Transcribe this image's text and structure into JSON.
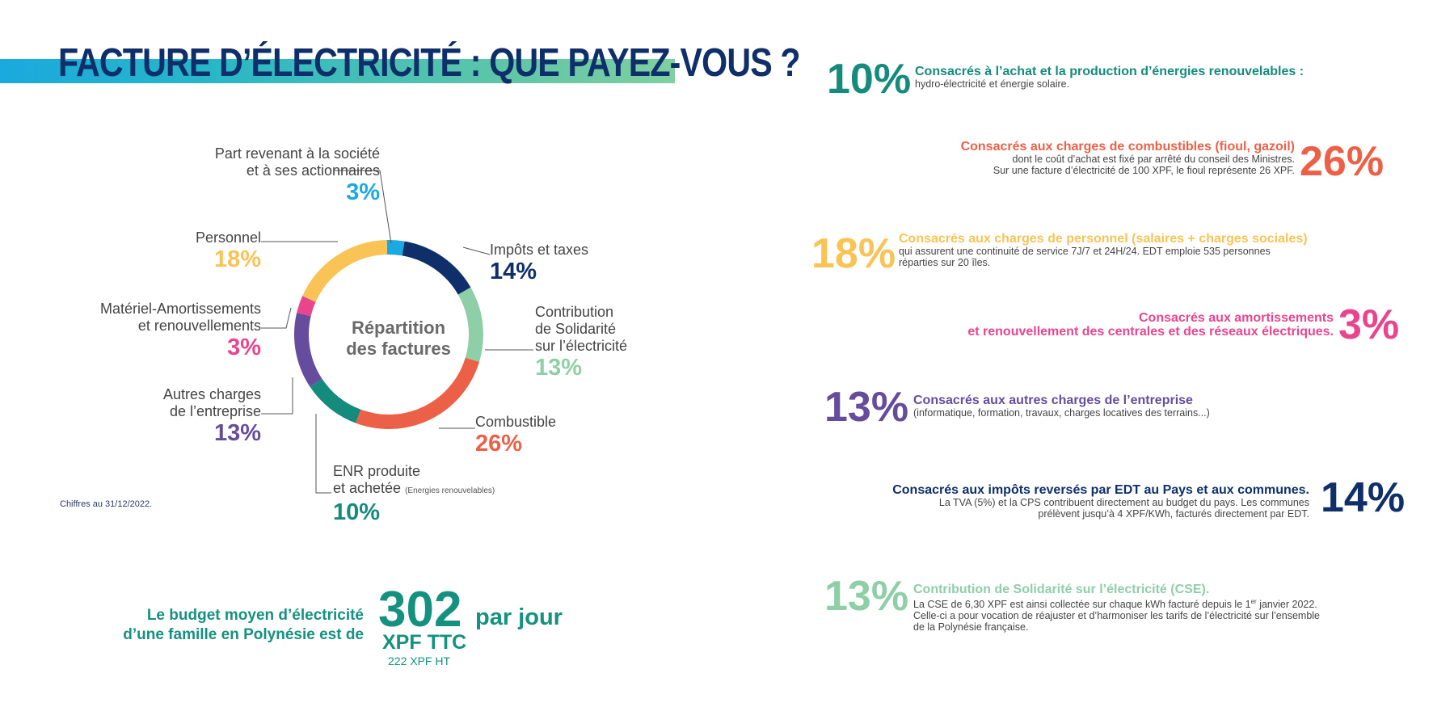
{
  "title": "FACTURE D’ÉLECTRICITÉ : QUE PAYEZ-VOUS ?",
  "colors": {
    "navy": "#0f2f6b",
    "cyan": "#1aa9e1",
    "yellow": "#f9c356",
    "pink": "#e9458d",
    "purple": "#654c9d",
    "teal": "#148b7c",
    "orange": "#ed6048",
    "mint": "#8ecfa7"
  },
  "chart_data": {
    "type": "pie",
    "variant": "donut",
    "center_label": [
      "Répartition",
      "des factures"
    ],
    "slices": [
      {
        "key": "share",
        "label": [
          "Part revenant à la société",
          "et à ses actionnaires"
        ],
        "value": 3,
        "value_text": "3%",
        "color": "#1aa9e1"
      },
      {
        "key": "taxes",
        "label": [
          "Impôts et taxes"
        ],
        "value": 14,
        "value_text": "14%",
        "color": "#0f2f6b"
      },
      {
        "key": "cse",
        "label": [
          "Contribution",
          "de Solidarité",
          "sur l’électricité"
        ],
        "value": 13,
        "value_text": "13%",
        "color": "#8ecfa7"
      },
      {
        "key": "fuel",
        "label": [
          "Combustible"
        ],
        "value": 26,
        "value_text": "26%",
        "color": "#ed6048"
      },
      {
        "key": "enr",
        "label": [
          "ENR produite",
          "et achetée"
        ],
        "label_note": "(Energies renouvelables)",
        "value": 10,
        "value_text": "10%",
        "color": "#148b7c"
      },
      {
        "key": "other",
        "label": [
          "Autres charges",
          "de l’entreprise"
        ],
        "value": 13,
        "value_text": "13%",
        "color": "#654c9d"
      },
      {
        "key": "amort",
        "label": [
          "Matériel-Amortissements",
          "et renouvellements"
        ],
        "value": 3,
        "value_text": "3%",
        "color": "#e9458d"
      },
      {
        "key": "staff",
        "label": [
          "Personnel"
        ],
        "value": 18,
        "value_text": "18%",
        "color": "#f9c356"
      }
    ]
  },
  "note": "Chiffres au 31/12/2022.",
  "budget": {
    "text": [
      "Le budget moyen d’électricité",
      "d’une famille en Polynésie est de"
    ],
    "amount": "302",
    "per": "par jour",
    "unit": "XPF TTC",
    "ht": "222 XPF HT"
  },
  "items": [
    {
      "pct": "10%",
      "color": "#148b7c",
      "title": "Consacrés à l’achat et la production d’énergies renouvelables :",
      "body": [
        "hydro-électricité et énergie solaire."
      ]
    },
    {
      "pct": "26%",
      "color": "#ed6048",
      "title": "Consacrés aux charges de combustibles (fioul, gazoil)",
      "body": [
        "dont le coût d’achat est fixé par arrêté du conseil des Ministres.",
        "Sur une facture d’électricité de 100 XPF, le fioul représente 26 XPF."
      ]
    },
    {
      "pct": "18%",
      "color": "#f9c356",
      "title": "Consacrés aux charges de personnel (salaires + charges sociales)",
      "body": [
        "qui assurent une continuité de service 7J/7 et 24H/24. EDT emploie 535 personnes",
        "réparties sur 20 îles."
      ]
    },
    {
      "pct": "3%",
      "color": "#e9458d",
      "title_lines": [
        "Consacrés aux amortissements",
        "et renouvellement des centrales et des réseaux électriques."
      ]
    },
    {
      "pct": "13%",
      "color": "#654c9d",
      "title": "Consacrés aux autres charges de l’entreprise",
      "body": [
        "(informatique, formation, travaux, charges locatives des terrains...)"
      ]
    },
    {
      "pct": "14%",
      "color": "#0f2f6b",
      "title": "Consacrés aux impôts reversés par EDT au Pays et aux communes.",
      "body": [
        "La TVA (5%) et la CPS contribuent directement au budget du pays. Les communes",
        "prélèvent jusqu’à 4 XPF/KWh, facturés directement par EDT."
      ]
    },
    {
      "pct": "13%",
      "color": "#8ecfa7",
      "title": "Contribution de Solidarité sur l’électricité (CSE).",
      "body_html_parts": {
        "line1_a": "La CSE de 6,30 XPF est ainsi collectée sur chaque kWh facturé depuis le 1",
        "line1_sup": "er",
        "line1_b": " janvier 2022."
      },
      "body": [
        "Celle-ci a pour vocation de réajuster et d’harmoniser les tarifs de l’électricité sur l’ensemble",
        "de la Polynésie française."
      ]
    }
  ]
}
